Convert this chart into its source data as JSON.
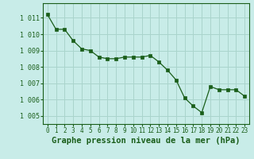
{
  "x": [
    0,
    1,
    2,
    3,
    4,
    5,
    6,
    7,
    8,
    9,
    10,
    11,
    12,
    13,
    14,
    15,
    16,
    17,
    18,
    19,
    20,
    21,
    22,
    23
  ],
  "y": [
    1011.2,
    1010.3,
    1010.3,
    1009.6,
    1009.1,
    1009.0,
    1008.6,
    1008.5,
    1008.5,
    1008.6,
    1008.6,
    1008.6,
    1008.7,
    1008.3,
    1007.8,
    1007.2,
    1006.1,
    1005.6,
    1005.2,
    1006.8,
    1006.6,
    1006.6,
    1006.6,
    1006.2
  ],
  "line_color": "#1a5e1a",
  "marker_color": "#1a5e1a",
  "bg_color": "#c8ece8",
  "grid_color": "#aad4cc",
  "title": "Graphe pression niveau de la mer (hPa)",
  "xlabel_ticks": [
    "0",
    "1",
    "2",
    "3",
    "4",
    "5",
    "6",
    "7",
    "8",
    "9",
    "10",
    "11",
    "12",
    "13",
    "14",
    "15",
    "16",
    "17",
    "18",
    "19",
    "20",
    "21",
    "22",
    "23"
  ],
  "ylim": [
    1004.5,
    1011.9
  ],
  "yticks": [
    1005,
    1006,
    1007,
    1008,
    1009,
    1010,
    1011
  ],
  "ytick_labels": [
    "1 005",
    "1 006",
    "1 007",
    "1 008",
    "1 009",
    "1 010",
    "1 011"
  ],
  "title_color": "#1a5e1a",
  "title_fontsize": 7.5,
  "tick_fontsize": 6.0,
  "xtick_fontsize": 5.5
}
